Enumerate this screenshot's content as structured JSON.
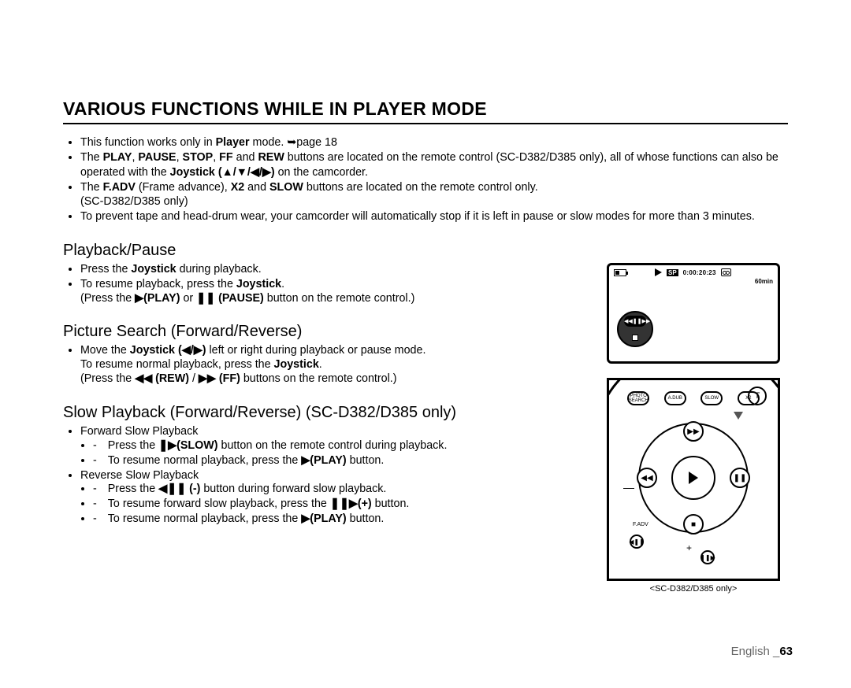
{
  "title": "VARIOUS FUNCTIONS WHILE IN PLAYER MODE",
  "intro": {
    "b1a": "This function works only in ",
    "b1b": "Player",
    "b1c": " mode. ➥page 18",
    "b2a": "The ",
    "b2_play": "PLAY",
    "b2_pause": "PAUSE",
    "b2_stop": "STOP",
    "b2_ff": "FF",
    "b2_and": " and ",
    "b2_rew": "REW",
    "b2b": " buttons are located on the remote control (SC-D382/D385 only), all of whose functions can also be operated with the ",
    "b2_joy": "Joystick",
    "b2_dirs": " (▲/▼/◀/▶)",
    "b2c": " on the camcorder.",
    "b3a": "The ",
    "b3_fadv": "F.ADV",
    "b3b": " (Frame advance), ",
    "b3_x2": "X2",
    "b3_and": " and ",
    "b3_slow": "SLOW",
    "b3c": " buttons are located on the remote control only.",
    "b3d": "(SC-D382/D385 only)",
    "b4": "To prevent tape and head-drum wear, your camcorder will automatically stop if it is left in pause or slow modes for more than 3 minutes."
  },
  "sec1": {
    "heading": "Playback/Pause",
    "i1a": "Press the ",
    "i1b": "Joystick",
    "i1c": " during playback.",
    "i2a": "To resume playback, press the ",
    "i2b": "Joystick",
    "i2c": ".",
    "i2d": "(Press the ",
    "i2_play": "▶(PLAY)",
    "i2_or": " or ",
    "i2_pause": "❚❚ (PAUSE)",
    "i2e": " button on the remote control.)"
  },
  "sec2": {
    "heading": "Picture Search (Forward/Reverse)",
    "i1a": "Move the ",
    "i1b": "Joystick (◀/▶)",
    "i1c": " left or right during playback or pause mode.",
    "i1d": "To resume normal playback, press the ",
    "i1e": "Joystick",
    "i1f": ".",
    "i1g": "(Press the ",
    "i1_rew": "◀◀ (REW)",
    "i1_slash": " / ",
    "i1_ff": "▶▶ (FF)",
    "i1h": " buttons on the remote control.)"
  },
  "sec3": {
    "heading": "Slow Playback (Forward/Reverse) (SC-D382/D385 only)",
    "fwd_label": "Forward Slow Playback",
    "f1a": "Press the ",
    "f1_slow": "❚▶(SLOW)",
    "f1b": " button on the remote control during playback.",
    "f2a": "To resume normal playback, press the ",
    "f2_play": "▶(PLAY)",
    "f2b": " button.",
    "rev_label": "Reverse Slow Playback",
    "r1a": "Press the ",
    "r1_btn": "◀❚❚ (-)",
    "r1b": " button during forward slow playback.",
    "r2a": "To resume forward slow playback, press the ",
    "r2_btn": "❚❚▶(+)",
    "r2b": " button.",
    "r3a": "To resume normal playback, press the ",
    "r3_play": "▶(PLAY)",
    "r3b": " button."
  },
  "lcd": {
    "sp": "SP",
    "timecode": "0:00:20:23",
    "minutes": "60min",
    "rew_sym": "◀◀",
    "pause_sym": "❚❚",
    "ff_sym": "▶▶"
  },
  "remote": {
    "btn_photo": "PHOTO\nSEARCH",
    "btn_adub": "A.DUB",
    "btn_slow": "SLOW",
    "btn_x2": "X2",
    "T": "T",
    "up": "▶▶",
    "down": "■",
    "left": "◀◀",
    "right": "❚❚",
    "bl": "◀❚❚",
    "br": "❚❚▶",
    "fadv": "F.ADV",
    "minus": "—",
    "plus": "+"
  },
  "caption": "<SC-D382/D385 only>",
  "footer": {
    "lang": "English ",
    "underscore": "_",
    "page": "63"
  },
  "colors": {
    "text": "#000000",
    "footer_gray": "#666666",
    "arrow_gray": "#555555"
  }
}
